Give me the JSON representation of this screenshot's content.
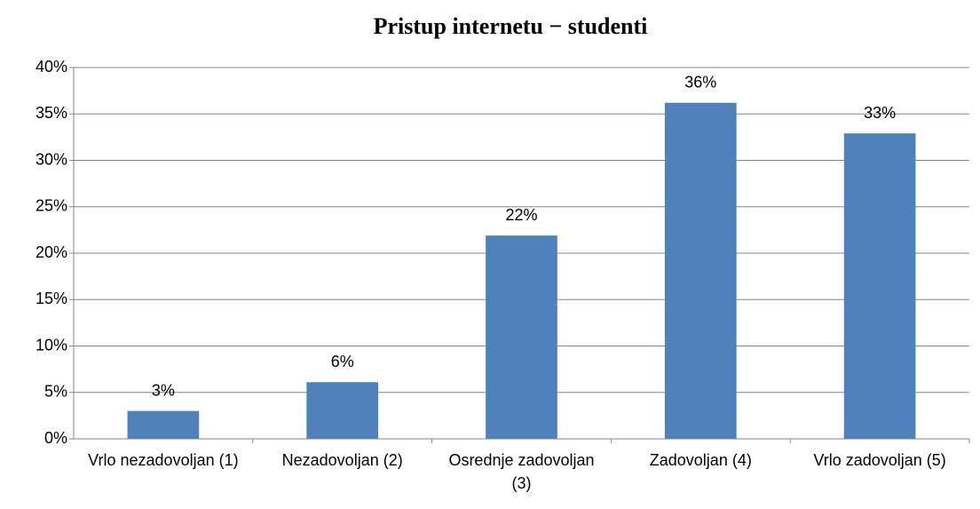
{
  "chart_data": {
    "type": "bar",
    "title": "Pristup internetu − studenti",
    "categories": [
      "Vrlo nezadovoljan (1)",
      "Nezadovoljan (2)",
      "Osrednje zadovoljan (3)",
      "Zadovoljan (4)",
      "Vrlo zadovoljan (5)"
    ],
    "values": [
      3,
      6.1,
      21.9,
      36.2,
      32.9
    ],
    "value_labels": [
      "3%",
      "6%",
      "22%",
      "36%",
      "33%"
    ],
    "color": "#4f81bd",
    "ylim": [
      0,
      40
    ],
    "yticks": [
      {
        "value": 0,
        "label": "0%"
      },
      {
        "value": 5,
        "label": "5%"
      },
      {
        "value": 10,
        "label": "10%"
      },
      {
        "value": 15,
        "label": "15%"
      },
      {
        "value": 20,
        "label": "20%"
      },
      {
        "value": 25,
        "label": "25%"
      },
      {
        "value": 30,
        "label": "30%"
      },
      {
        "value": 35,
        "label": "35%"
      },
      {
        "value": 40,
        "label": "40%"
      }
    ],
    "grid": true
  }
}
